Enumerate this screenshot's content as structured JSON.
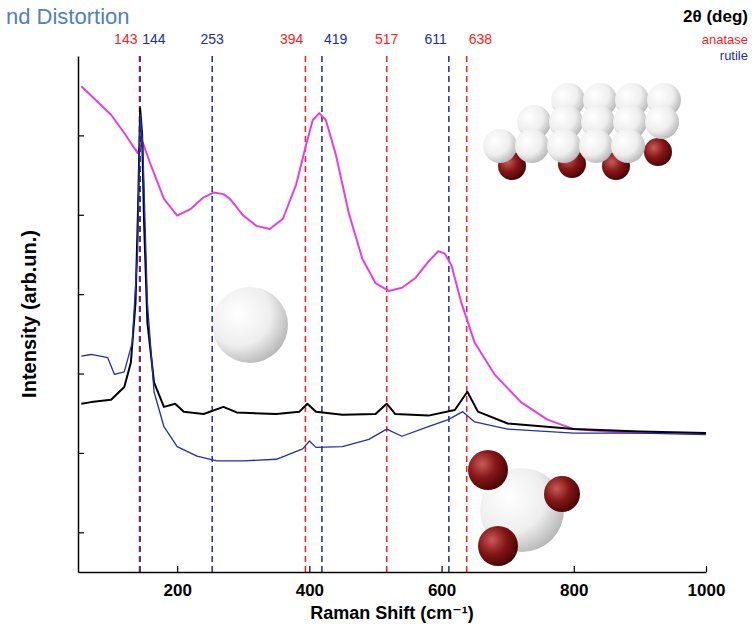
{
  "chart_data": {
    "type": "line",
    "title": "nd Distortion",
    "x_label": "Raman Shift (cm⁻¹)",
    "y_label": "Intensity (arb.un.)",
    "annotations": [
      "2θ (deg)"
    ],
    "xlim": [
      50,
      1000
    ],
    "xticks": [
      200,
      400,
      600,
      800,
      1000
    ],
    "ylim": [
      -0.5,
      6
    ],
    "yticks": [
      0,
      1,
      2,
      3,
      4,
      5
    ],
    "tick_labels": "x",
    "grid": false,
    "legend": "top-right",
    "reference_lines": [
      {
        "name": "anatase",
        "color": "#ff1a1a",
        "line_style": "dashed",
        "values": [
          143,
          394,
          517,
          638
        ]
      },
      {
        "name": "rutile",
        "color": "#1c2d9c",
        "line_style": "dashed",
        "values": [
          144,
          253,
          419,
          611
        ]
      }
    ],
    "series": [
      {
        "color": "#e23fe6",
        "x": [
          55,
          70,
          100,
          120,
          140,
          148,
          160,
          180,
          200,
          220,
          240,
          255,
          270,
          280,
          300,
          320,
          340,
          360,
          380,
          395,
          405,
          415,
          425,
          440,
          460,
          480,
          500,
          520,
          540,
          560,
          580,
          595,
          605,
          615,
          630,
          650,
          680,
          720,
          760,
          800,
          850,
          900,
          950,
          1000
        ],
        "values": [
          5.62,
          5.5,
          5.26,
          5.03,
          4.78,
          4.91,
          4.63,
          4.2,
          3.99,
          4.07,
          4.22,
          4.28,
          4.26,
          4.2,
          3.99,
          3.86,
          3.82,
          3.95,
          4.38,
          4.88,
          5.19,
          5.28,
          5.19,
          4.76,
          4.01,
          3.45,
          3.14,
          3.04,
          3.08,
          3.2,
          3.41,
          3.54,
          3.51,
          3.36,
          2.89,
          2.39,
          1.99,
          1.64,
          1.42,
          1.3,
          1.27,
          1.25,
          1.25,
          1.25
        ]
      },
      {
        "color": "#000000",
        "x": [
          55,
          70,
          100,
          120,
          130,
          137,
          141,
          144,
          147,
          150,
          155,
          165,
          180,
          197,
          210,
          240,
          270,
          290,
          350,
          385,
          397,
          410,
          450,
          500,
          517,
          530,
          580,
          620,
          639,
          655,
          700,
          800,
          900,
          1000
        ],
        "values": [
          1.62,
          1.64,
          1.67,
          1.83,
          2.14,
          2.89,
          4.13,
          5.34,
          5.01,
          3.89,
          2.64,
          1.89,
          1.58,
          1.62,
          1.52,
          1.49,
          1.58,
          1.51,
          1.49,
          1.52,
          1.62,
          1.52,
          1.48,
          1.49,
          1.62,
          1.49,
          1.47,
          1.54,
          1.77,
          1.52,
          1.37,
          1.3,
          1.27,
          1.25
        ]
      },
      {
        "color": "#1f2fb0",
        "x": [
          55,
          70,
          95,
          105,
          120,
          132,
          140,
          144,
          148,
          155,
          165,
          180,
          200,
          230,
          260,
          300,
          350,
          390,
          400,
          410,
          450,
          490,
          517,
          540,
          580,
          610,
          632,
          650,
          700,
          800,
          900,
          1000
        ],
        "values": [
          2.22,
          2.24,
          2.2,
          1.99,
          2.02,
          2.39,
          3.51,
          5.26,
          4.88,
          2.89,
          1.77,
          1.33,
          1.08,
          0.96,
          0.9,
          0.9,
          0.92,
          1.05,
          1.15,
          1.07,
          1.08,
          1.17,
          1.3,
          1.21,
          1.33,
          1.42,
          1.52,
          1.39,
          1.3,
          1.25,
          1.25,
          1.23
        ]
      }
    ]
  }
}
